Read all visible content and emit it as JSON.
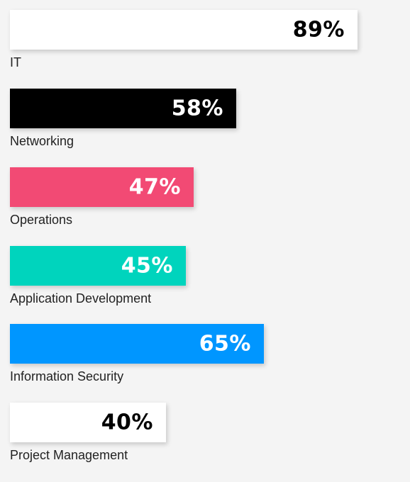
{
  "chart_data": {
    "type": "bar",
    "orientation": "horizontal",
    "categories": [
      "IT",
      "Networking",
      "Operations",
      "Application Development",
      "Information Security",
      "Project Management"
    ],
    "values": [
      89,
      58,
      47,
      45,
      65,
      40
    ],
    "value_labels": [
      "89%",
      "58%",
      "47%",
      "45%",
      "65%",
      "40%"
    ],
    "unit": "%",
    "xlim": [
      0,
      100
    ],
    "bar_colors": [
      "#ffffff",
      "#000000",
      "#f24a74",
      "#00d4bd",
      "#0096ff",
      "#ffffff"
    ],
    "value_label_colors": [
      "#000000",
      "#ffffff",
      "#ffffff",
      "#ffffff",
      "#ffffff",
      "#000000"
    ],
    "grid": false,
    "legend": "none"
  }
}
